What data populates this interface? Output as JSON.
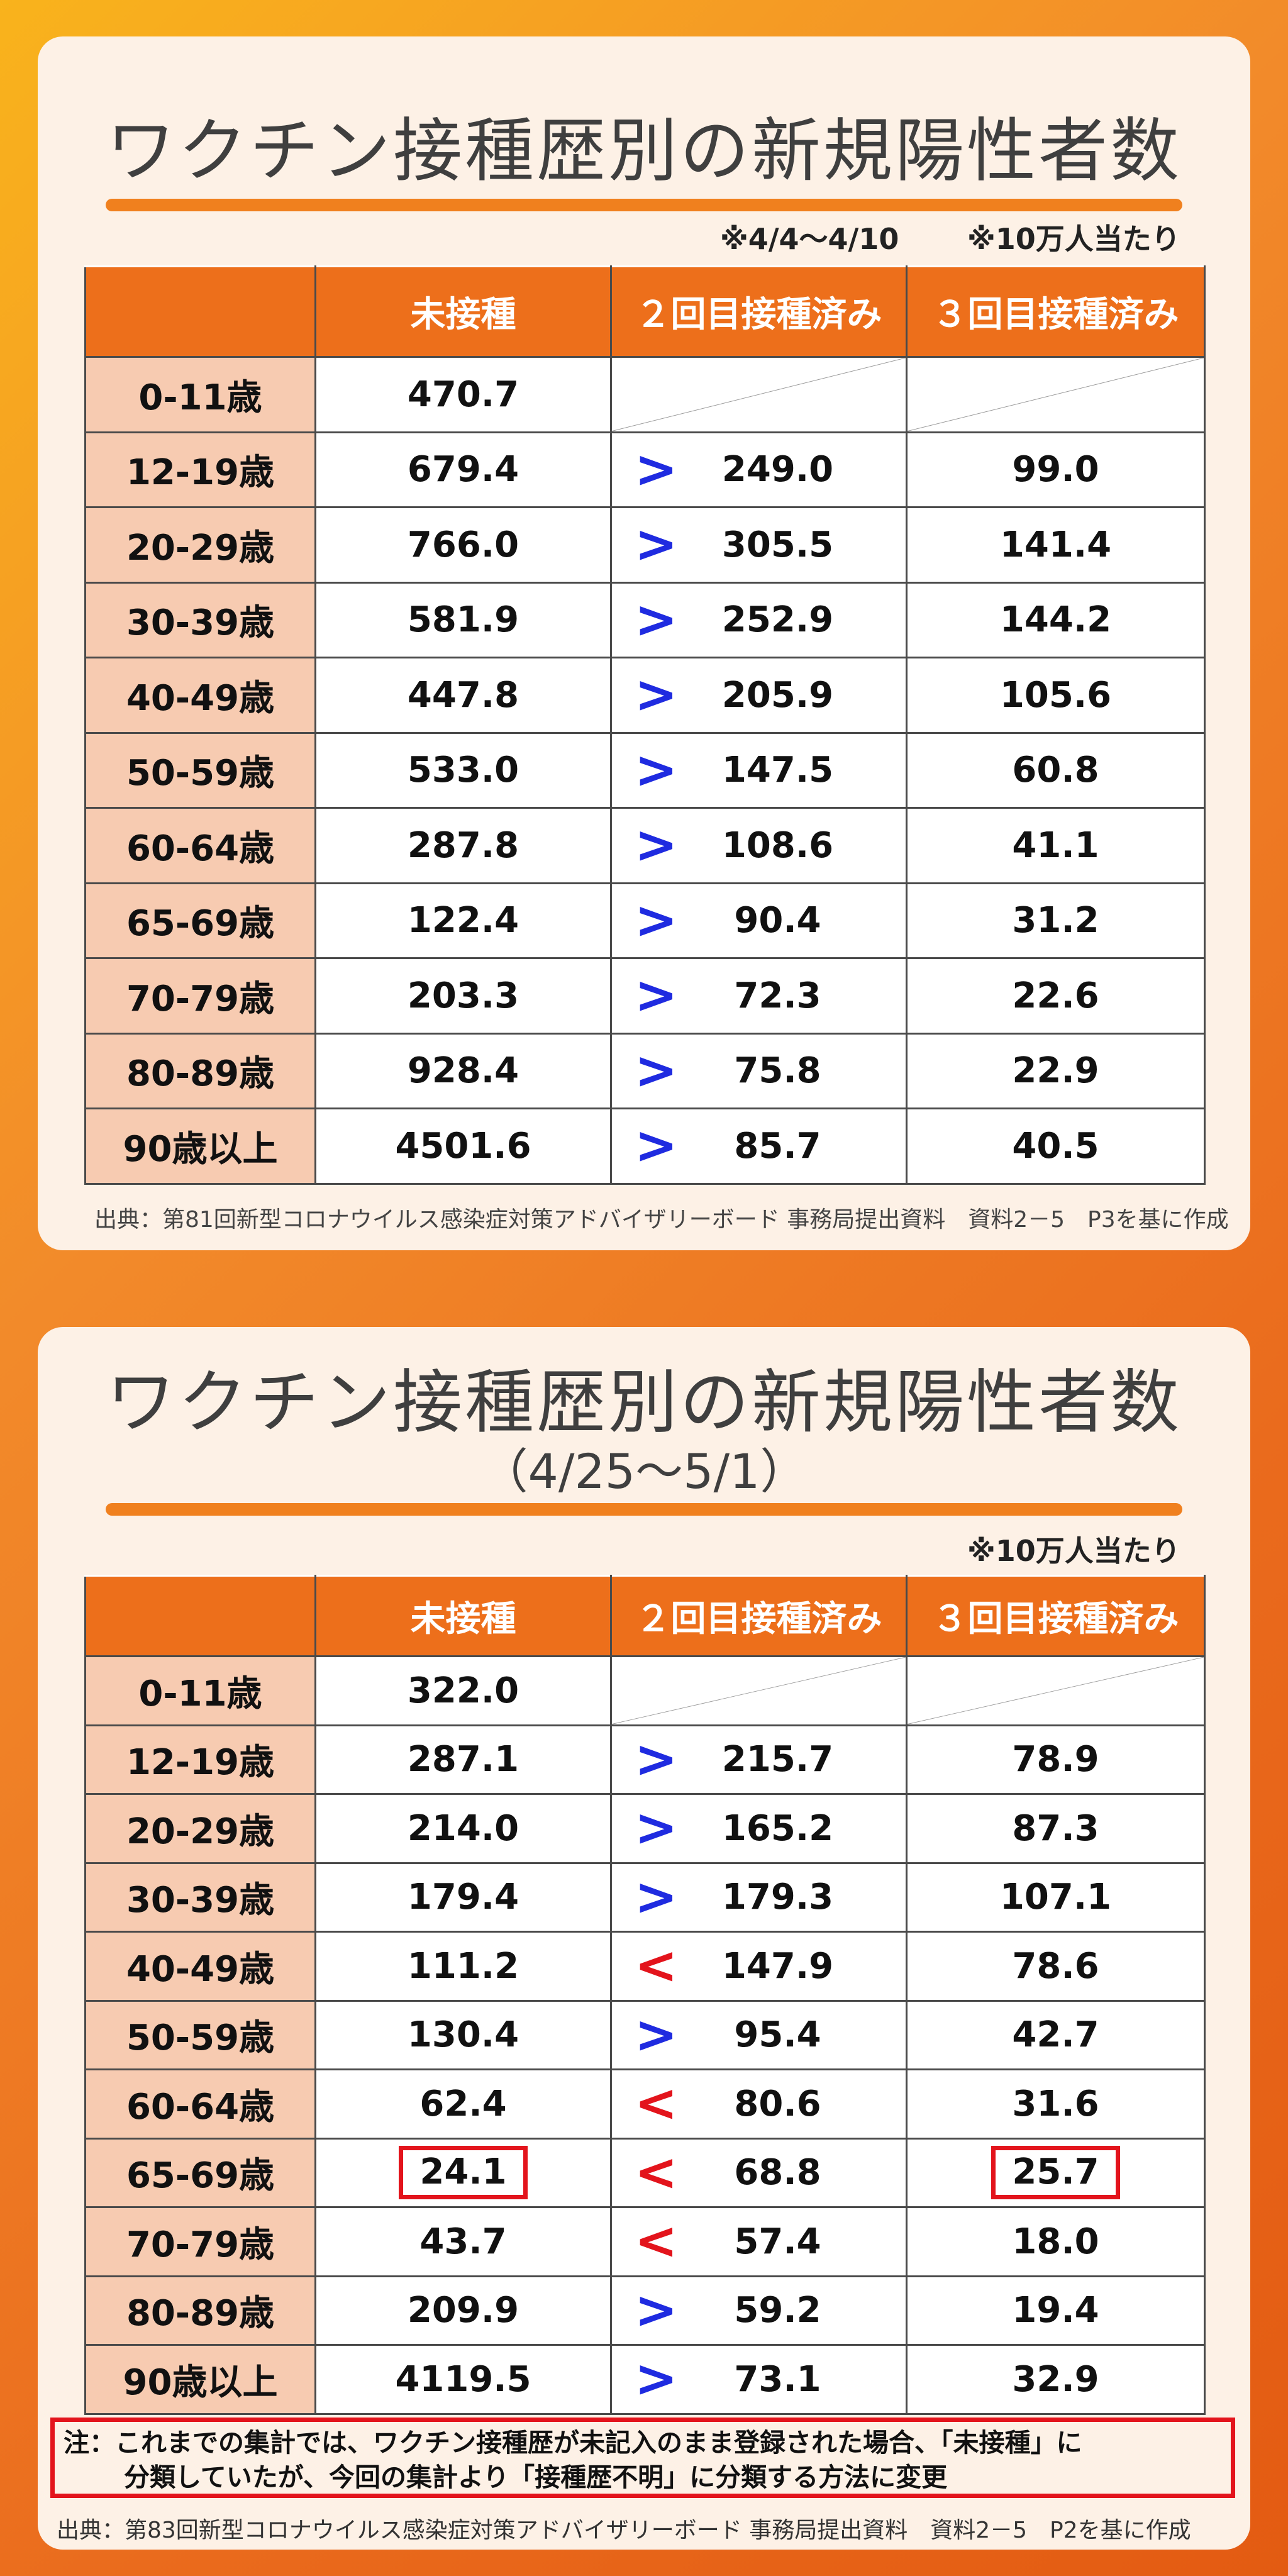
{
  "panel1": {
    "title": "ワクチン接種歴別の新規陽性者数",
    "period_note": "※4/4～4/10",
    "unit_note": "※10万人当たり",
    "headers": [
      "未接種",
      "２回目接種済み",
      "３回目接種済み"
    ],
    "rows": [
      {
        "age": "0-11歳",
        "unvax": "470.7",
        "cmp": "",
        "dose2": "",
        "dose3": ""
      },
      {
        "age": "12-19歳",
        "unvax": "679.4",
        "cmp": ">",
        "dose2": "249.0",
        "dose3": "99.0"
      },
      {
        "age": "20-29歳",
        "unvax": "766.0",
        "cmp": ">",
        "dose2": "305.5",
        "dose3": "141.4"
      },
      {
        "age": "30-39歳",
        "unvax": "581.9",
        "cmp": ">",
        "dose2": "252.9",
        "dose3": "144.2"
      },
      {
        "age": "40-49歳",
        "unvax": "447.8",
        "cmp": ">",
        "dose2": "205.9",
        "dose3": "105.6"
      },
      {
        "age": "50-59歳",
        "unvax": "533.0",
        "cmp": ">",
        "dose2": "147.5",
        "dose3": "60.8"
      },
      {
        "age": "60-64歳",
        "unvax": "287.8",
        "cmp": ">",
        "dose2": "108.6",
        "dose3": "41.1"
      },
      {
        "age": "65-69歳",
        "unvax": "122.4",
        "cmp": ">",
        "dose2": "90.4",
        "dose3": "31.2"
      },
      {
        "age": "70-79歳",
        "unvax": "203.3",
        "cmp": ">",
        "dose2": "72.3",
        "dose3": "22.6"
      },
      {
        "age": "80-89歳",
        "unvax": "928.4",
        "cmp": ">",
        "dose2": "75.8",
        "dose3": "22.9"
      },
      {
        "age": "90歳以上",
        "unvax": "4501.6",
        "cmp": ">",
        "dose2": "85.7",
        "dose3": "40.5"
      }
    ],
    "source": "出典：第81回新型コロナウイルス感染症対策アドバイザリーボード 事務局提出資料　資料2－5　P3を基に作成"
  },
  "panel2": {
    "title": "ワクチン接種歴別の新規陽性者数",
    "subtitle": "（4/25～5/1）",
    "unit_note": "※10万人当たり",
    "headers": [
      "未接種",
      "２回目接種済み",
      "３回目接種済み"
    ],
    "rows": [
      {
        "age": "0-11歳",
        "unvax": "322.0",
        "cmp": "",
        "dose2": "",
        "dose3": ""
      },
      {
        "age": "12-19歳",
        "unvax": "287.1",
        "cmp": ">",
        "dose2": "215.7",
        "dose3": "78.9"
      },
      {
        "age": "20-29歳",
        "unvax": "214.0",
        "cmp": ">",
        "dose2": "165.2",
        "dose3": "87.3"
      },
      {
        "age": "30-39歳",
        "unvax": "179.4",
        "cmp": ">",
        "dose2": "179.3",
        "dose3": "107.1"
      },
      {
        "age": "40-49歳",
        "unvax": "111.2",
        "cmp": "<",
        "dose2": "147.9",
        "dose3": "78.6"
      },
      {
        "age": "50-59歳",
        "unvax": "130.4",
        "cmp": ">",
        "dose2": "95.4",
        "dose3": "42.7"
      },
      {
        "age": "60-64歳",
        "unvax": "62.4",
        "cmp": "<",
        "dose2": "80.6",
        "dose3": "31.6"
      },
      {
        "age": "65-69歳",
        "unvax": "24.1",
        "cmp": "<",
        "dose2": "68.8",
        "dose3": "25.7",
        "highlight": true
      },
      {
        "age": "70-79歳",
        "unvax": "43.7",
        "cmp": "<",
        "dose2": "57.4",
        "dose3": "18.0"
      },
      {
        "age": "80-89歳",
        "unvax": "209.9",
        "cmp": ">",
        "dose2": "59.2",
        "dose3": "19.4"
      },
      {
        "age": "90歳以上",
        "unvax": "4119.5",
        "cmp": ">",
        "dose2": "73.1",
        "dose3": "32.9"
      }
    ],
    "note_line1": "注：これまでの集計では、ワクチン接種歴が未記入のまま登録された場合、「未接種」に",
    "note_line2": "分類していたが、今回の集計より「接種歴不明」に分類する方法に変更",
    "source": "出典：第83回新型コロナウイルス感染症対策アドバイザリーボード 事務局提出資料　資料2－5　P2を基に作成"
  },
  "colors": {
    "header_orange": "#ed6f1b",
    "age_cell": "#f7cbb1",
    "greater_than": "#1f2be0",
    "less_than": "#e3141c",
    "highlight_box": "#e3141c"
  }
}
